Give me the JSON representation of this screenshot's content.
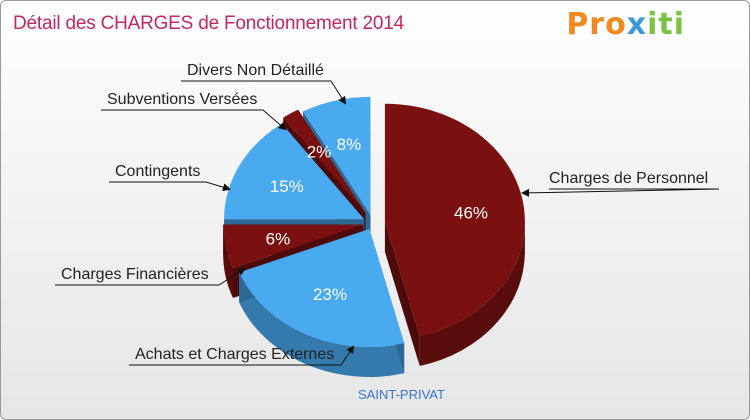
{
  "title": "Détail des CHARGES de Fonctionnement 2014",
  "brand": {
    "part1": "Pro",
    "part2": "x",
    "part3": "iti"
  },
  "place": "SAINT-PRIVAT",
  "colors": {
    "maroon": "#7a1010",
    "blue": "#4aaaf0"
  },
  "chart_data": {
    "type": "pie",
    "title": "Détail des CHARGES de Fonctionnement 2014",
    "slices": [
      {
        "label": "Charges de Personnel",
        "value": 46,
        "value_label": "46%",
        "color": "maroon"
      },
      {
        "label": "Achats et Charges Externes",
        "value": 23,
        "value_label": "23%",
        "color": "blue"
      },
      {
        "label": "Charges Financières",
        "value": 6,
        "value_label": "6%",
        "color": "maroon"
      },
      {
        "label": "Contingents",
        "value": 15,
        "value_label": "15%",
        "color": "blue"
      },
      {
        "label": "Subventions Versées",
        "value": 2,
        "value_label": "2%",
        "color": "maroon"
      },
      {
        "label": "Divers Non Détaillé",
        "value": 8,
        "value_label": "8%",
        "color": "blue"
      }
    ]
  }
}
